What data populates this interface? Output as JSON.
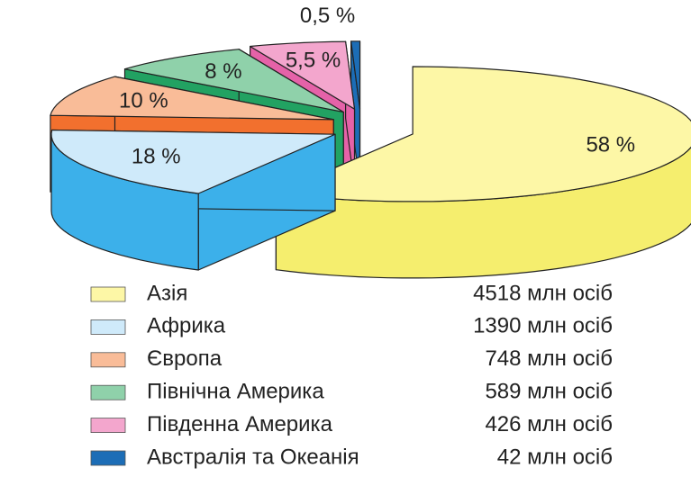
{
  "chart_data": {
    "type": "pie3d",
    "categories": [
      "Азія",
      "Африка",
      "Європа",
      "Північна Америка",
      "Південна Америка",
      "Австралія та Океанія"
    ],
    "values": [
      58,
      18,
      10,
      8,
      5.5,
      0.5
    ],
    "value_labels": [
      "58 %",
      "18 %",
      "10 %",
      "8 %",
      "5,5 %",
      "0,5 %"
    ],
    "populations": [
      "4518 млн осіб",
      "1390 млн осіб",
      "748 млн осіб",
      "589 млн осіб",
      "426 млн осіб",
      "42 млн осіб"
    ],
    "colors": [
      "#fdf7a6",
      "#cfeafa",
      "#f9bc98",
      "#8fd1aa",
      "#f3a6cd",
      "#1c6db6"
    ],
    "side_colors": [
      "#f5ee6e",
      "#3cb0ea",
      "#f2702e",
      "#22a262",
      "#e562a8",
      "#1c6db6"
    ]
  }
}
